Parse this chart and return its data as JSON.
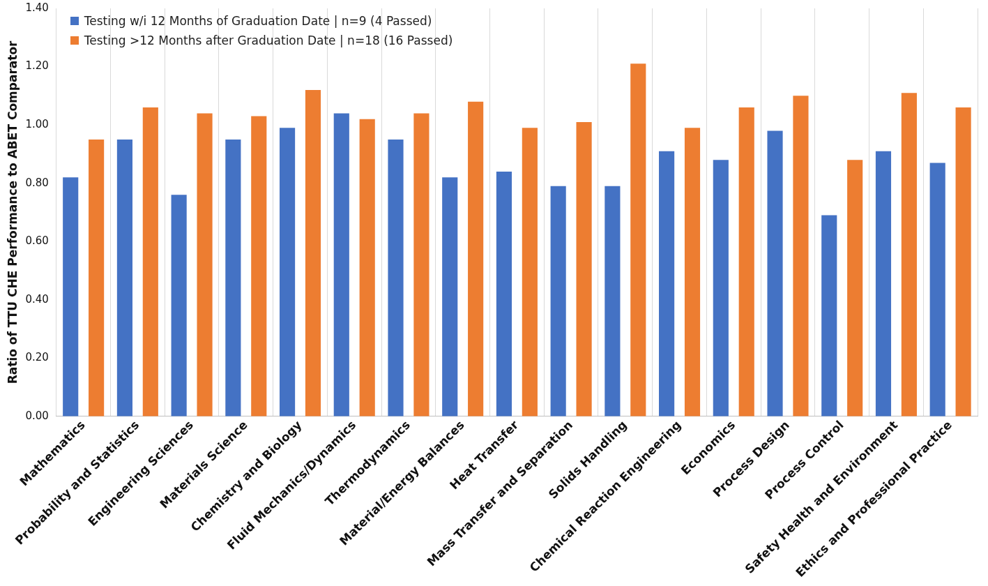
{
  "chart_data": {
    "type": "bar",
    "ylabel": "Ratio of TTU CHE Performance to ABET Comparator",
    "categories": [
      "Mathematics",
      "Probability and Statistics",
      "Engineering Sciences",
      "Materials Science",
      "Chemistry and Biology",
      "Fluid Mechanics/Dynamics",
      "Thermodynamics",
      "Material/Energy Balances",
      "Heat Transfer",
      "Mass Transfer and Separation",
      "Solids Handling",
      "Chemical Reaction Engineering",
      "Economics",
      "Process Design",
      "Process Control",
      "Safety Health and Environment",
      "Ethics and Professional Practice"
    ],
    "series": [
      {
        "name": "Testing w/i 12 Months of Graduation Date | n=9 (4 Passed)",
        "color": "#4472c4",
        "values": [
          0.82,
          0.95,
          0.76,
          0.95,
          0.99,
          1.04,
          0.95,
          0.82,
          0.84,
          0.79,
          0.79,
          0.91,
          0.88,
          0.98,
          0.69,
          0.91,
          0.87
        ]
      },
      {
        "name": "Testing >12 Months after Graduation Date | n=18 (16 Passed)",
        "color": "#ed7d31",
        "values": [
          0.95,
          1.06,
          1.04,
          1.03,
          1.12,
          1.02,
          1.04,
          1.08,
          0.99,
          1.01,
          1.21,
          0.99,
          1.06,
          1.1,
          0.88,
          1.11,
          1.06
        ]
      }
    ],
    "ylim": [
      0,
      1.4
    ],
    "yticks": [
      {
        "value": 0,
        "label": "0.00"
      },
      {
        "value": 0.2,
        "label": "0.20"
      },
      {
        "value": 0.4,
        "label": "0.40"
      },
      {
        "value": 0.6,
        "label": "0.60"
      },
      {
        "value": 0.8,
        "label": "0.80"
      },
      {
        "value": 1.0,
        "label": "1.00"
      },
      {
        "value": 1.2,
        "label": "1.20"
      },
      {
        "value": 1.4,
        "label": "1.40"
      }
    ],
    "grid": "x",
    "legend": "top left"
  }
}
